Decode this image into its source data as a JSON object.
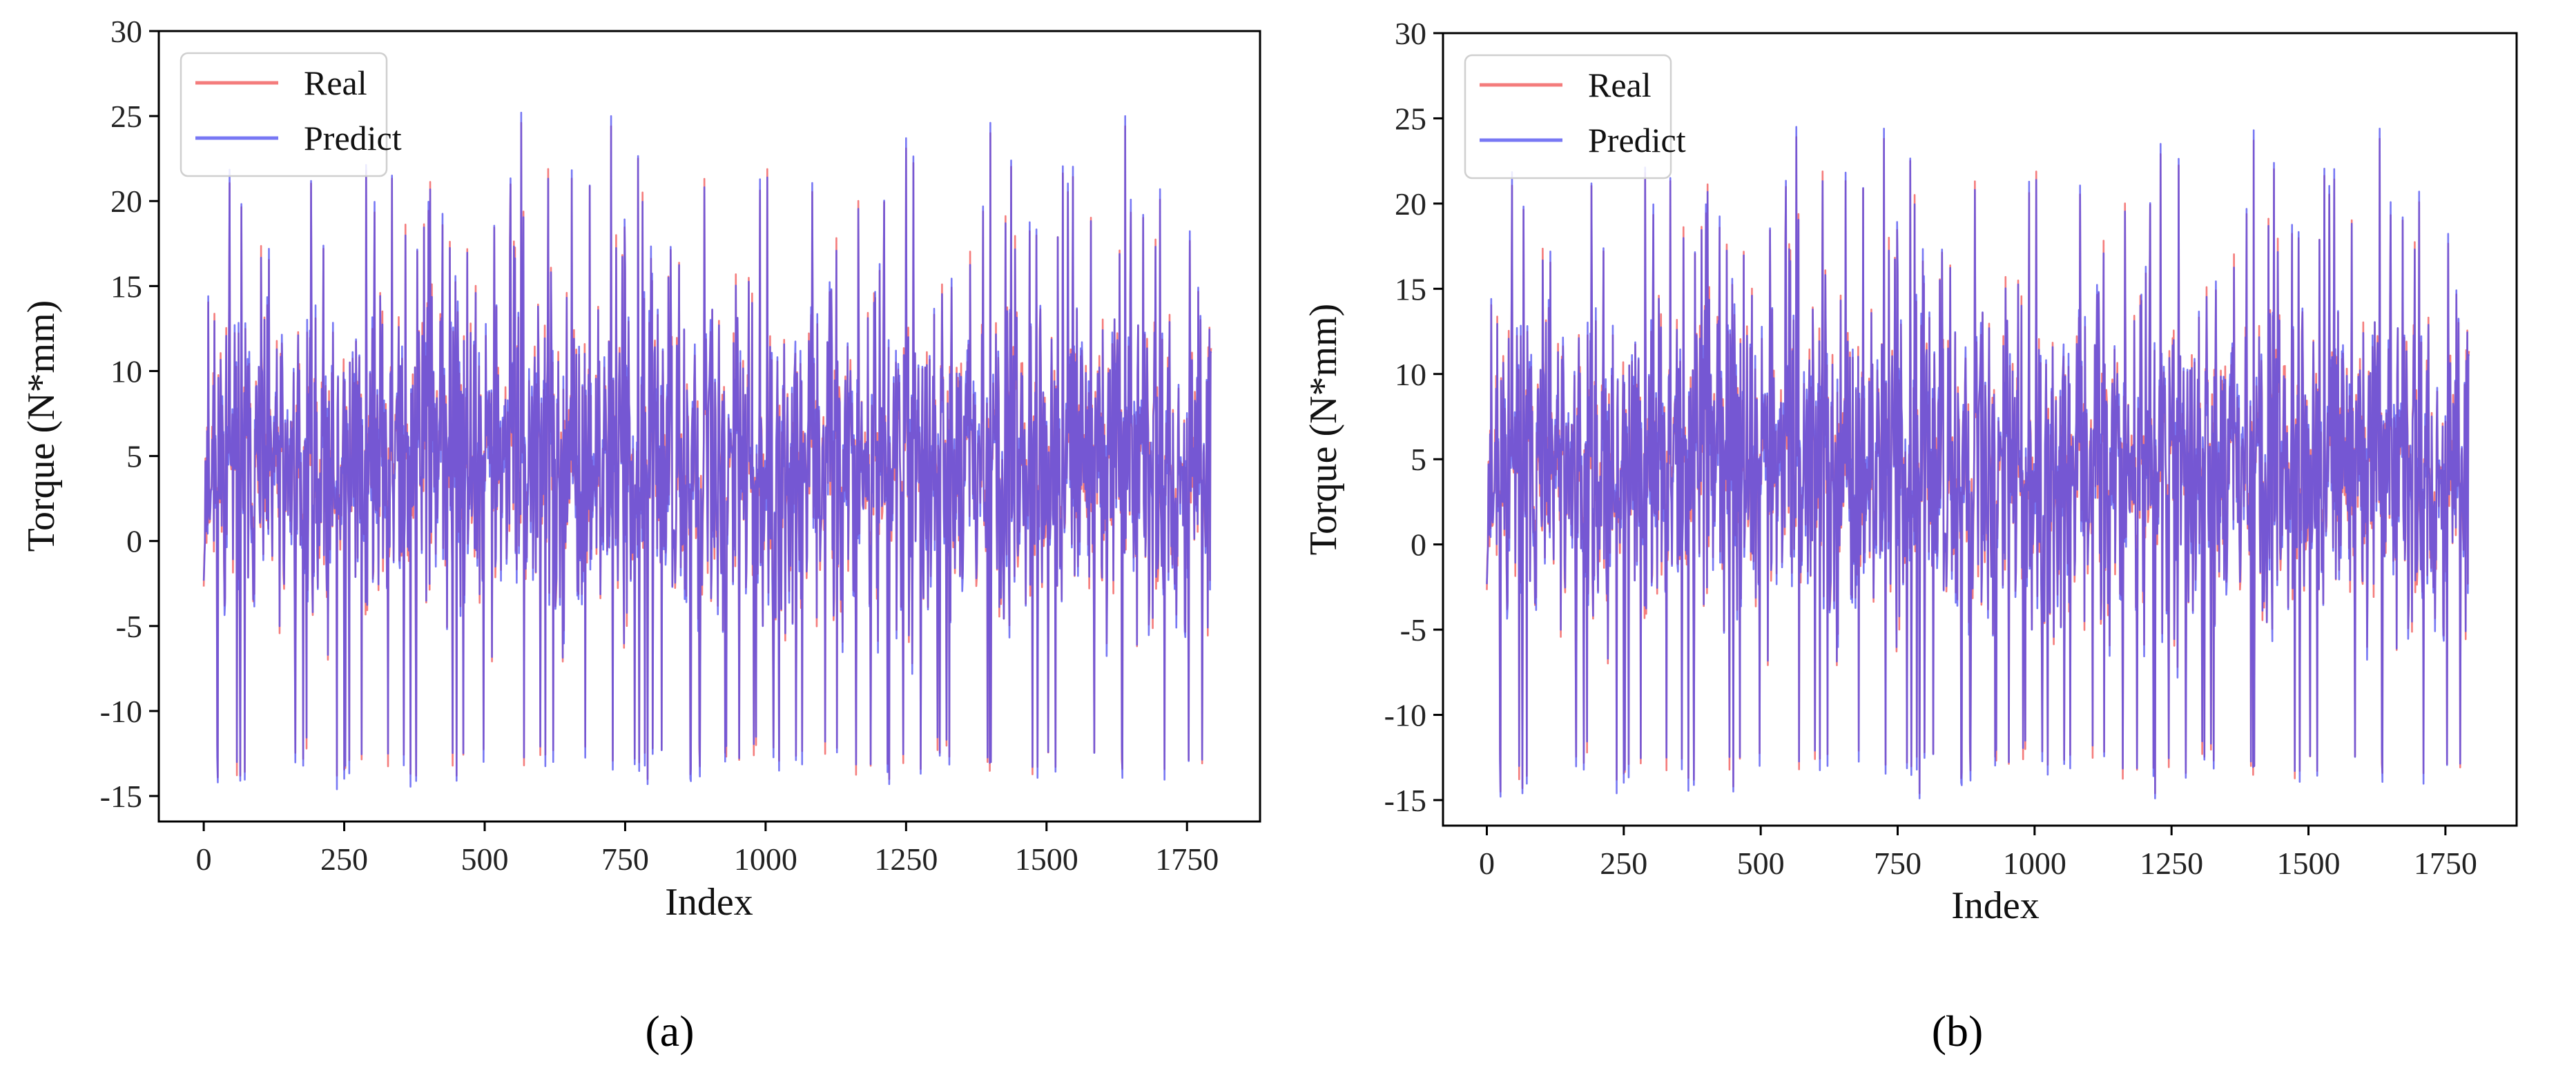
{
  "chart_data": [
    {
      "panel_id": "a",
      "panel_label": "(a)",
      "type": "line",
      "xlabel": "Index",
      "ylabel": "Torque (N*mm)",
      "xlim": [
        -80,
        1880
      ],
      "ylim": [
        -16.5,
        30
      ],
      "xticks": [
        0,
        250,
        500,
        750,
        1000,
        1250,
        1500,
        1750
      ],
      "yticks": [
        -15,
        -10,
        -5,
        0,
        5,
        10,
        15,
        20,
        25,
        30
      ],
      "n_points": 1794,
      "legend_position": "top-left",
      "seed": 11,
      "series": [
        {
          "name": "Real",
          "color": "#f05050",
          "opacity": 0.75
        },
        {
          "name": "Predict",
          "color": "#4b4bf0",
          "opacity": 0.75
        }
      ],
      "overlap_color": "#7b3fc8",
      "notable_peaks": [
        {
          "index": 565,
          "value": 25.2
        },
        {
          "index": 725,
          "value": 25.0
        },
        {
          "index": 1400,
          "value": 24.6
        },
        {
          "index": 1640,
          "value": 25.0
        },
        {
          "index": 1250,
          "value": 23.7
        }
      ],
      "notable_troughs": [
        {
          "index": 25,
          "value": -14.2
        },
        {
          "index": 65,
          "value": -14.1
        },
        {
          "index": 450,
          "value": -14.1
        },
        {
          "index": 790,
          "value": -14.3
        },
        {
          "index": 1220,
          "value": -14.3
        }
      ]
    },
    {
      "panel_id": "b",
      "panel_label": "(b)",
      "type": "line",
      "xlabel": "Index",
      "ylabel": "Torque (N*mm)",
      "xlim": [
        -80,
        1880
      ],
      "ylim": [
        -16.5,
        30
      ],
      "xticks": [
        0,
        250,
        500,
        750,
        1000,
        1250,
        1500,
        1750
      ],
      "yticks": [
        -15,
        -10,
        -5,
        0,
        5,
        10,
        15,
        20,
        25,
        30
      ],
      "n_points": 1794,
      "legend_position": "top-left",
      "seed": 11,
      "series": [
        {
          "name": "Real",
          "color": "#f05050",
          "opacity": 0.75
        },
        {
          "name": "Predict",
          "color": "#4b4bf0",
          "opacity": 0.75
        }
      ],
      "overlap_color": "#7b3fc8",
      "notable_peaks": [
        {
          "index": 565,
          "value": 24.5
        },
        {
          "index": 725,
          "value": 24.4
        },
        {
          "index": 1400,
          "value": 24.3
        },
        {
          "index": 1630,
          "value": 24.4
        },
        {
          "index": 1230,
          "value": 23.5
        }
      ],
      "notable_troughs": [
        {
          "index": 25,
          "value": -14.8
        },
        {
          "index": 65,
          "value": -14.6
        },
        {
          "index": 450,
          "value": -14.5
        },
        {
          "index": 790,
          "value": -14.9
        },
        {
          "index": 1220,
          "value": -14.9
        }
      ]
    }
  ]
}
